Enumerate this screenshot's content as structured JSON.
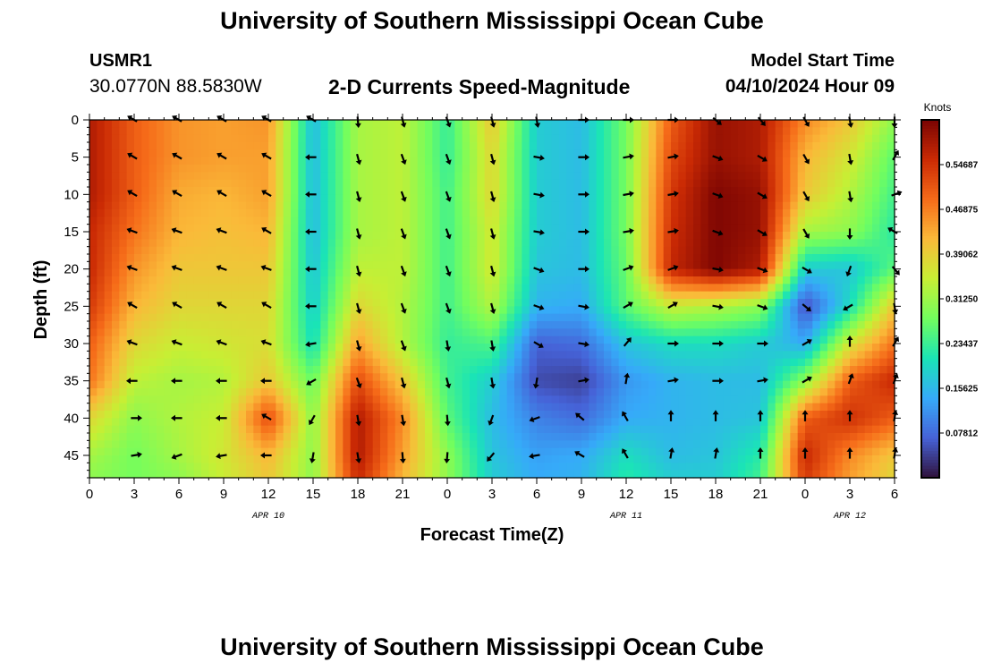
{
  "header": {
    "title": "University of Southern Mississippi Ocean Cube",
    "station_id": "USMR1",
    "coordinates": "30.0770N  88.5830W",
    "subtitle": "2-D Currents Speed-Magnitude",
    "model_start_label": "Model Start Time",
    "model_start_value": "04/10/2024 Hour 09"
  },
  "footer": {
    "title": "University of Southern Mississippi Ocean Cube"
  },
  "chart_data": {
    "type": "heatmap",
    "xlabel": "Forecast Time(Z)",
    "ylabel": "Depth (ft)",
    "x_tick_labels": [
      "0",
      "3",
      "6",
      "9",
      "12",
      "15",
      "18",
      "21",
      "0",
      "3",
      "6",
      "9",
      "12",
      "15",
      "18",
      "21",
      "0",
      "3",
      "6"
    ],
    "x_hours": [
      0,
      3,
      6,
      9,
      12,
      15,
      18,
      21,
      24,
      27,
      30,
      33,
      36,
      39,
      42,
      45,
      48,
      51,
      54
    ],
    "date_labels": [
      {
        "label": "APR 10",
        "hour": 12
      },
      {
        "label": "APR 11",
        "hour": 36
      },
      {
        "label": "APR 12",
        "hour": 51
      }
    ],
    "y_tick_labels": [
      "0",
      "5",
      "10",
      "15",
      "20",
      "25",
      "30",
      "35",
      "40",
      "45"
    ],
    "y_values": [
      0,
      5,
      10,
      15,
      20,
      25,
      30,
      35,
      40,
      45
    ],
    "ylim": [
      0,
      48
    ],
    "xlim": [
      0,
      54
    ],
    "colorbar": {
      "title": "Knots",
      "tick_labels": [
        "0.54687",
        "0.46875",
        "0.39062",
        "0.31250",
        "0.23437",
        "0.15625",
        "0.07812"
      ],
      "tick_values": [
        0.54687,
        0.46875,
        0.39062,
        0.3125,
        0.23437,
        0.15625,
        0.07812
      ],
      "range": [
        0.0,
        0.625
      ],
      "colors": [
        "#30123b",
        "#4662d7",
        "#36aaf9",
        "#1ae4b6",
        "#72fe5e",
        "#c7ef34",
        "#faba39",
        "#f66b19",
        "#ca2a04",
        "#7a0403"
      ]
    },
    "speed_grid": {
      "hours": [
        0,
        3,
        6,
        9,
        12,
        15,
        18,
        21,
        24,
        27,
        30,
        33,
        36,
        39,
        42,
        45,
        48,
        51,
        54
      ],
      "depths": [
        0,
        5,
        10,
        15,
        20,
        25,
        30,
        35,
        40,
        45,
        48
      ],
      "values": [
        [
          0.58,
          0.5,
          0.45,
          0.44,
          0.45,
          0.16,
          0.32,
          0.34,
          0.23,
          0.4,
          0.18,
          0.16,
          0.28,
          0.5,
          0.6,
          0.58,
          0.46,
          0.4,
          0.3
        ],
        [
          0.58,
          0.5,
          0.45,
          0.44,
          0.44,
          0.16,
          0.32,
          0.34,
          0.23,
          0.38,
          0.18,
          0.16,
          0.28,
          0.52,
          0.6,
          0.58,
          0.42,
          0.36,
          0.26
        ],
        [
          0.58,
          0.5,
          0.43,
          0.42,
          0.44,
          0.16,
          0.32,
          0.34,
          0.24,
          0.38,
          0.18,
          0.16,
          0.28,
          0.54,
          0.62,
          0.6,
          0.4,
          0.33,
          0.24
        ],
        [
          0.56,
          0.48,
          0.42,
          0.41,
          0.42,
          0.16,
          0.32,
          0.34,
          0.24,
          0.36,
          0.18,
          0.16,
          0.28,
          0.55,
          0.62,
          0.6,
          0.32,
          0.3,
          0.22
        ],
        [
          0.56,
          0.45,
          0.4,
          0.4,
          0.4,
          0.17,
          0.34,
          0.34,
          0.24,
          0.36,
          0.17,
          0.16,
          0.27,
          0.56,
          0.62,
          0.58,
          0.18,
          0.17,
          0.26
        ],
        [
          0.54,
          0.42,
          0.38,
          0.38,
          0.38,
          0.18,
          0.38,
          0.33,
          0.24,
          0.33,
          0.15,
          0.14,
          0.26,
          0.35,
          0.33,
          0.3,
          0.05,
          0.2,
          0.4
        ],
        [
          0.5,
          0.38,
          0.35,
          0.36,
          0.37,
          0.2,
          0.44,
          0.33,
          0.23,
          0.25,
          0.07,
          0.08,
          0.17,
          0.2,
          0.2,
          0.18,
          0.14,
          0.36,
          0.48
        ],
        [
          0.48,
          0.34,
          0.32,
          0.33,
          0.4,
          0.27,
          0.52,
          0.4,
          0.24,
          0.18,
          0.05,
          0.04,
          0.12,
          0.15,
          0.16,
          0.16,
          0.3,
          0.5,
          0.56
        ],
        [
          0.38,
          0.3,
          0.33,
          0.35,
          0.52,
          0.3,
          0.58,
          0.46,
          0.26,
          0.16,
          0.1,
          0.08,
          0.14,
          0.15,
          0.16,
          0.17,
          0.5,
          0.55,
          0.5
        ],
        [
          0.32,
          0.28,
          0.32,
          0.36,
          0.42,
          0.3,
          0.58,
          0.44,
          0.3,
          0.17,
          0.13,
          0.14,
          0.2,
          0.16,
          0.17,
          0.22,
          0.56,
          0.46,
          0.4
        ],
        [
          0.3,
          0.28,
          0.3,
          0.35,
          0.4,
          0.3,
          0.56,
          0.42,
          0.3,
          0.18,
          0.14,
          0.15,
          0.22,
          0.18,
          0.18,
          0.24,
          0.54,
          0.44,
          0.38
        ]
      ]
    },
    "vector_rows_depth": [
      0,
      5,
      10,
      15,
      20,
      25,
      30,
      35,
      40,
      45
    ],
    "vector_columns_hour": [
      3,
      6,
      9,
      12,
      15,
      18,
      21,
      24,
      27,
      30,
      33,
      36,
      39,
      42,
      45,
      48,
      51,
      54
    ],
    "vector_directions_deg": [
      [
        300,
        300,
        300,
        300,
        300,
        175,
        165,
        160,
        165,
        170,
        90,
        90,
        90,
        130,
        140,
        150,
        170,
        180
      ],
      [
        300,
        300,
        300,
        300,
        270,
        165,
        160,
        160,
        165,
        100,
        90,
        80,
        80,
        110,
        120,
        150,
        170,
        30
      ],
      [
        300,
        300,
        300,
        300,
        270,
        165,
        160,
        160,
        165,
        100,
        90,
        80,
        80,
        110,
        120,
        150,
        170,
        70
      ],
      [
        290,
        290,
        290,
        300,
        270,
        165,
        160,
        160,
        165,
        100,
        90,
        80,
        80,
        110,
        120,
        150,
        180,
        300
      ],
      [
        290,
        290,
        290,
        290,
        270,
        165,
        160,
        160,
        165,
        110,
        90,
        70,
        70,
        100,
        110,
        120,
        200,
        140
      ],
      [
        300,
        300,
        300,
        300,
        270,
        165,
        160,
        160,
        165,
        110,
        100,
        60,
        60,
        100,
        110,
        130,
        240,
        170
      ],
      [
        290,
        290,
        290,
        290,
        260,
        165,
        160,
        170,
        170,
        120,
        100,
        40,
        90,
        90,
        90,
        60,
        0,
        30
      ],
      [
        270,
        270,
        270,
        270,
        240,
        160,
        165,
        165,
        170,
        190,
        80,
        10,
        80,
        90,
        80,
        60,
        20,
        20
      ],
      [
        90,
        270,
        270,
        300,
        210,
        170,
        170,
        175,
        200,
        250,
        310,
        330,
        0,
        0,
        0,
        0,
        0,
        10
      ],
      [
        80,
        250,
        260,
        270,
        190,
        170,
        175,
        185,
        220,
        260,
        300,
        330,
        10,
        10,
        0,
        0,
        0,
        10
      ]
    ]
  }
}
